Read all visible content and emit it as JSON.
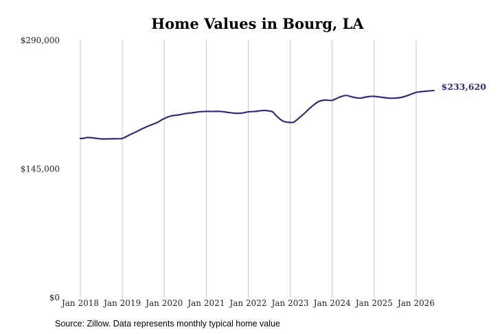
{
  "chart_data": {
    "type": "line",
    "title": "Home Values in Bourg, LA",
    "xlabel": "",
    "ylabel": "",
    "ylim": [
      0,
      290000
    ],
    "y_ticks": [
      {
        "value": 0,
        "label": "$0"
      },
      {
        "value": 145000,
        "label": "$145,000"
      },
      {
        "value": 290000,
        "label": "$290,000"
      }
    ],
    "x_ticks": [
      {
        "value": 2018,
        "label": "Jan 2018"
      },
      {
        "value": 2019,
        "label": "Jan 2019"
      },
      {
        "value": 2020,
        "label": "Jan 2020"
      },
      {
        "value": 2021,
        "label": "Jan 2021"
      },
      {
        "value": 2022,
        "label": "Jan 2022"
      },
      {
        "value": 2023,
        "label": "Jan 2023"
      },
      {
        "value": 2024,
        "label": "Jan 2024"
      },
      {
        "value": 2025,
        "label": "Jan 2025"
      },
      {
        "value": 2026,
        "label": "Jan 2026"
      }
    ],
    "xlim": [
      2018,
      2026.5
    ],
    "grid": "vertical",
    "line_color": "#2e2a78",
    "end_label": "$233,620",
    "series": [
      {
        "x": [
          2018.0,
          2018.08,
          2018.17,
          2018.33,
          2018.5,
          2018.67,
          2018.83,
          2019.0,
          2019.17,
          2019.33,
          2019.5,
          2019.67,
          2019.83,
          2020.0,
          2020.17,
          2020.33,
          2020.5,
          2020.67,
          2020.83,
          2021.0,
          2021.17,
          2021.33,
          2021.5,
          2021.67,
          2021.83,
          2022.0,
          2022.17,
          2022.33,
          2022.42,
          2022.5,
          2022.58,
          2022.67,
          2022.83,
          2023.0,
          2023.08,
          2023.17,
          2023.33,
          2023.5,
          2023.67,
          2023.83,
          2024.0,
          2024.17,
          2024.33,
          2024.5,
          2024.67,
          2024.83,
          2025.0,
          2025.17,
          2025.33,
          2025.5,
          2025.67,
          2025.83,
          2026.0,
          2026.17,
          2026.42
        ],
        "y": [
          179500,
          179700,
          180600,
          180000,
          179000,
          179000,
          179200,
          179600,
          183500,
          187000,
          191000,
          194500,
          197500,
          202000,
          205000,
          206000,
          207500,
          208500,
          209500,
          210000,
          210000,
          210000,
          209000,
          208000,
          208000,
          209500,
          210000,
          211000,
          211000,
          210500,
          209500,
          205000,
          199000,
          197600,
          197800,
          201000,
          207500,
          215000,
          221000,
          222800,
          222500,
          226000,
          228000,
          226000,
          225000,
          226500,
          227000,
          226000,
          225000,
          225000,
          226000,
          228500,
          231500,
          232500,
          233620
        ]
      }
    ]
  },
  "source_note": "Source: Zillow. Data represents monthly typical home value"
}
